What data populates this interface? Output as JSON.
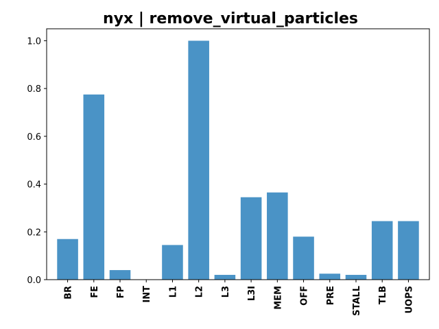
{
  "chart_data": {
    "type": "bar",
    "title": "nyx | remove_virtual_particles",
    "xlabel": "",
    "ylabel": "",
    "categories": [
      "BR",
      "FE",
      "FP",
      "INT",
      "L1",
      "L2",
      "L3",
      "L3I",
      "MEM",
      "OFF",
      "PRE",
      "STALL",
      "TLB",
      "UOPS"
    ],
    "values": [
      0.17,
      0.775,
      0.04,
      0.0,
      0.145,
      1.0,
      0.02,
      0.345,
      0.365,
      0.18,
      0.025,
      0.02,
      0.245,
      0.245
    ],
    "ylim": [
      0,
      1.05
    ],
    "yticks": [
      0.0,
      0.2,
      0.4,
      0.6,
      0.8,
      1.0
    ],
    "ytick_labels": [
      "0.0",
      "0.2",
      "0.4",
      "0.6",
      "0.8",
      "1.0"
    ],
    "bar_color": "#4a93c6",
    "grid": false,
    "legend": "none"
  }
}
